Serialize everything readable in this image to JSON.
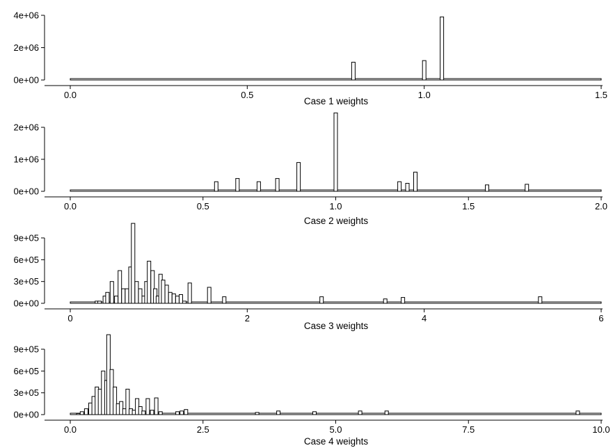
{
  "chart_data": [
    {
      "type": "bar",
      "xlabel": "Case 1 weights",
      "ylabel": "",
      "xlim": [
        0,
        1.5
      ],
      "ylim": [
        0,
        4000000
      ],
      "x_ticks": [
        "0.0",
        "0.5",
        "1.0",
        "1.5"
      ],
      "y_ticks": [
        "0e+00",
        "2e+06",
        "4e+06"
      ],
      "bars": [
        {
          "x": 0.8,
          "y": 1100000
        },
        {
          "x": 1.0,
          "y": 1200000
        },
        {
          "x": 1.05,
          "y": 3900000
        }
      ]
    },
    {
      "type": "bar",
      "xlabel": "Case 2 weights",
      "ylabel": "",
      "xlim": [
        0,
        2.0
      ],
      "ylim": [
        0,
        2400000
      ],
      "x_ticks": [
        "0.0",
        "0.5",
        "1.0",
        "1.5",
        "2.0"
      ],
      "y_ticks": [
        "0e+00",
        "1e+06",
        "2e+06"
      ],
      "bars": [
        {
          "x": 0.55,
          "y": 300000
        },
        {
          "x": 0.63,
          "y": 400000
        },
        {
          "x": 0.71,
          "y": 300000
        },
        {
          "x": 0.78,
          "y": 400000
        },
        {
          "x": 0.86,
          "y": 900000
        },
        {
          "x": 1.0,
          "y": 2450000
        },
        {
          "x": 1.24,
          "y": 300000
        },
        {
          "x": 1.27,
          "y": 250000
        },
        {
          "x": 1.3,
          "y": 600000
        },
        {
          "x": 1.57,
          "y": 200000
        },
        {
          "x": 1.72,
          "y": 220000
        }
      ]
    },
    {
      "type": "bar",
      "xlabel": "Case 3 weights",
      "ylabel": "",
      "xlim": [
        0,
        6
      ],
      "ylim": [
        0,
        1100000
      ],
      "x_ticks": [
        "0",
        "2",
        "4",
        "6"
      ],
      "y_ticks": [
        "0e+00",
        "3e+05",
        "6e+05",
        "9e+05"
      ],
      "bars": [
        {
          "x": 0.3,
          "y": 30000
        },
        {
          "x": 0.33,
          "y": 30000
        },
        {
          "x": 0.39,
          "y": 100000
        },
        {
          "x": 0.42,
          "y": 150000
        },
        {
          "x": 0.47,
          "y": 300000
        },
        {
          "x": 0.52,
          "y": 100000
        },
        {
          "x": 0.56,
          "y": 450000
        },
        {
          "x": 0.6,
          "y": 200000
        },
        {
          "x": 0.64,
          "y": 200000
        },
        {
          "x": 0.68,
          "y": 500000
        },
        {
          "x": 0.71,
          "y": 1100000
        },
        {
          "x": 0.75,
          "y": 300000
        },
        {
          "x": 0.79,
          "y": 200000
        },
        {
          "x": 0.83,
          "y": 100000
        },
        {
          "x": 0.86,
          "y": 300000
        },
        {
          "x": 0.89,
          "y": 580000
        },
        {
          "x": 0.93,
          "y": 450000
        },
        {
          "x": 0.96,
          "y": 200000
        },
        {
          "x": 0.99,
          "y": 100000
        },
        {
          "x": 1.02,
          "y": 400000
        },
        {
          "x": 1.05,
          "y": 320000
        },
        {
          "x": 1.09,
          "y": 250000
        },
        {
          "x": 1.13,
          "y": 150000
        },
        {
          "x": 1.17,
          "y": 130000
        },
        {
          "x": 1.21,
          "y": 100000
        },
        {
          "x": 1.25,
          "y": 120000
        },
        {
          "x": 1.29,
          "y": 30000
        },
        {
          "x": 1.35,
          "y": 280000
        },
        {
          "x": 1.57,
          "y": 220000
        },
        {
          "x": 1.74,
          "y": 90000
        },
        {
          "x": 2.84,
          "y": 90000
        },
        {
          "x": 3.56,
          "y": 60000
        },
        {
          "x": 3.76,
          "y": 80000
        },
        {
          "x": 5.31,
          "y": 90000
        }
      ]
    },
    {
      "type": "bar",
      "xlabel": "Case 4 weights",
      "ylabel": "",
      "xlim": [
        0,
        10
      ],
      "ylim": [
        0,
        1100000
      ],
      "x_ticks": [
        "0.0",
        "2.5",
        "5.0",
        "7.5",
        "10.0"
      ],
      "y_ticks": [
        "0e+00",
        "3e+05",
        "6e+05",
        "9e+05"
      ],
      "bars": [
        {
          "x": 0.15,
          "y": 15000
        },
        {
          "x": 0.22,
          "y": 40000
        },
        {
          "x": 0.3,
          "y": 80000
        },
        {
          "x": 0.38,
          "y": 160000
        },
        {
          "x": 0.44,
          "y": 250000
        },
        {
          "x": 0.5,
          "y": 380000
        },
        {
          "x": 0.56,
          "y": 350000
        },
        {
          "x": 0.62,
          "y": 600000
        },
        {
          "x": 0.68,
          "y": 470000
        },
        {
          "x": 0.72,
          "y": 1100000
        },
        {
          "x": 0.78,
          "y": 620000
        },
        {
          "x": 0.84,
          "y": 380000
        },
        {
          "x": 0.9,
          "y": 150000
        },
        {
          "x": 0.96,
          "y": 180000
        },
        {
          "x": 1.02,
          "y": 80000
        },
        {
          "x": 1.08,
          "y": 350000
        },
        {
          "x": 1.14,
          "y": 80000
        },
        {
          "x": 1.2,
          "y": 60000
        },
        {
          "x": 1.26,
          "y": 220000
        },
        {
          "x": 1.32,
          "y": 110000
        },
        {
          "x": 1.38,
          "y": 50000
        },
        {
          "x": 1.46,
          "y": 220000
        },
        {
          "x": 1.54,
          "y": 60000
        },
        {
          "x": 1.62,
          "y": 230000
        },
        {
          "x": 1.7,
          "y": 40000
        },
        {
          "x": 2.02,
          "y": 40000
        },
        {
          "x": 2.1,
          "y": 50000
        },
        {
          "x": 2.18,
          "y": 70000
        },
        {
          "x": 3.52,
          "y": 30000
        },
        {
          "x": 3.92,
          "y": 50000
        },
        {
          "x": 4.6,
          "y": 40000
        },
        {
          "x": 5.46,
          "y": 50000
        },
        {
          "x": 5.96,
          "y": 50000
        },
        {
          "x": 9.56,
          "y": 50000
        }
      ]
    }
  ]
}
